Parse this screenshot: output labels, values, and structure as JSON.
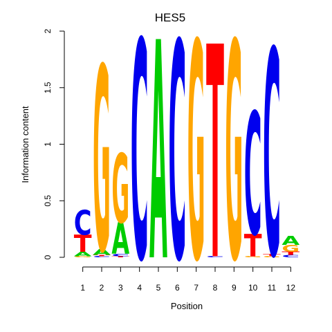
{
  "chart_data": {
    "type": "sequence-logo",
    "title": "HES5",
    "xlabel": "Position",
    "ylabel": "Information content",
    "ylim": [
      0,
      2
    ],
    "yticks": [
      "0",
      "0.5",
      "1",
      "1.5",
      "2"
    ],
    "positions": [
      "1",
      "2",
      "3",
      "4",
      "5",
      "6",
      "7",
      "8",
      "9",
      "10",
      "11",
      "12"
    ],
    "colors": {
      "A": "#00cc00",
      "C": "#0000ee",
      "G": "#ffa500",
      "T": "#ff0000"
    },
    "stacks": [
      [
        {
          "letter": "G",
          "value": 0.01
        },
        {
          "letter": "A",
          "value": 0.04
        },
        {
          "letter": "T",
          "value": 0.15
        },
        {
          "letter": "C",
          "value": 0.22
        }
      ],
      [
        {
          "letter": "C",
          "value": 0.01
        },
        {
          "letter": "T",
          "value": 0.01
        },
        {
          "letter": "A",
          "value": 0.05
        },
        {
          "letter": "G",
          "value": 1.63
        }
      ],
      [
        {
          "letter": "T",
          "value": 0.01
        },
        {
          "letter": "C",
          "value": 0.02
        },
        {
          "letter": "A",
          "value": 0.28
        },
        {
          "letter": "G",
          "value": 0.61
        }
      ],
      [
        {
          "letter": "C",
          "value": 1.93
        }
      ],
      [
        {
          "letter": "A",
          "value": 1.93
        }
      ],
      [
        {
          "letter": "C",
          "value": 1.92
        }
      ],
      [
        {
          "letter": "G",
          "value": 1.92
        }
      ],
      [
        {
          "letter": "C",
          "value": 0.01
        },
        {
          "letter": "T",
          "value": 1.88
        }
      ],
      [
        {
          "letter": "G",
          "value": 1.92
        }
      ],
      [
        {
          "letter": "G",
          "value": 0.01
        },
        {
          "letter": "T",
          "value": 0.2
        },
        {
          "letter": "C",
          "value": 1.08
        }
      ],
      [
        {
          "letter": "G",
          "value": 0.01
        },
        {
          "letter": "T",
          "value": 0.02
        },
        {
          "letter": "C",
          "value": 1.82
        }
      ],
      [
        {
          "letter": "C",
          "value": 0.02
        },
        {
          "letter": "T",
          "value": 0.03
        },
        {
          "letter": "G",
          "value": 0.06
        },
        {
          "letter": "A",
          "value": 0.08
        }
      ]
    ]
  }
}
